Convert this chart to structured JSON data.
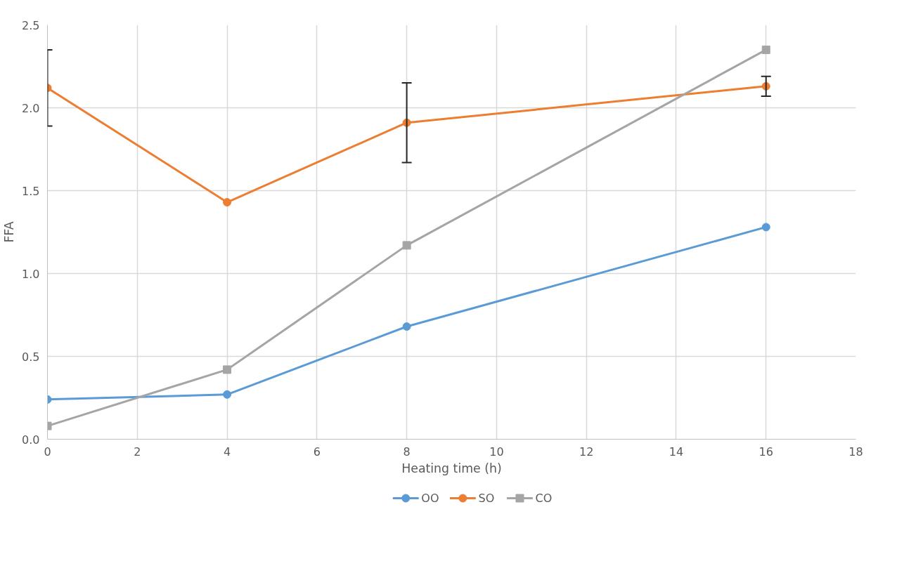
{
  "chart_data": {
    "type": "line",
    "xlabel": "Heating time (h)",
    "ylabel": "FFA",
    "x": [
      0,
      4,
      8,
      16
    ],
    "series": [
      {
        "name": "OO",
        "color": "#5b9bd5",
        "marker": "circle",
        "values": [
          0.24,
          0.27,
          0.68,
          1.28
        ]
      },
      {
        "name": "SO",
        "color": "#ed7d31",
        "marker": "circle",
        "values": [
          2.12,
          1.43,
          1.91,
          2.13
        ],
        "errors": [
          0.23,
          null,
          0.24,
          0.06
        ]
      },
      {
        "name": "CO",
        "color": "#a5a5a5",
        "marker": "square",
        "values": [
          0.08,
          0.42,
          1.17,
          2.35
        ]
      }
    ],
    "xlim": [
      0,
      18
    ],
    "xticks": [
      0,
      2,
      4,
      6,
      8,
      10,
      12,
      14,
      16,
      18
    ],
    "ylim": [
      0,
      2.5
    ],
    "yticks": [
      {
        "value": 0,
        "label": "0.0"
      },
      {
        "value": 0.5,
        "label": "0.5"
      },
      {
        "value": 1,
        "label": "1.0"
      },
      {
        "value": 1.5,
        "label": "1.5"
      },
      {
        "value": 2,
        "label": "2.0"
      },
      {
        "value": 2.5,
        "label": "2.5"
      }
    ],
    "grid": true,
    "legend": "bottom"
  }
}
